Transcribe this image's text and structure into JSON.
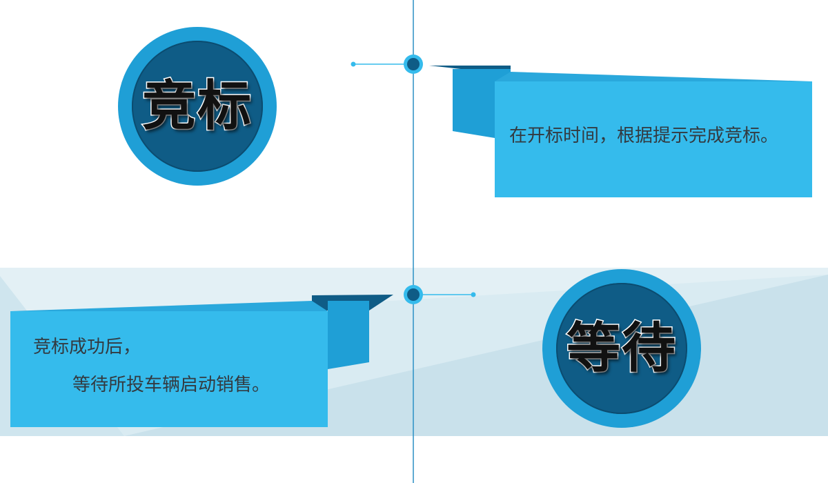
{
  "colors": {
    "accent": "#35bbec",
    "accent_dark": "#1f9fd6",
    "circle_inner": "#0f5c86",
    "band": "#d9ebf2",
    "timeline": "#2a8fc4"
  },
  "steps": [
    {
      "badge": "竞标",
      "description": "在开标时间，根据提示完成竞标。"
    },
    {
      "badge": "等待",
      "description_line1": "竞标成功后，",
      "description_line2": "等待所投车辆启动销售。"
    }
  ]
}
